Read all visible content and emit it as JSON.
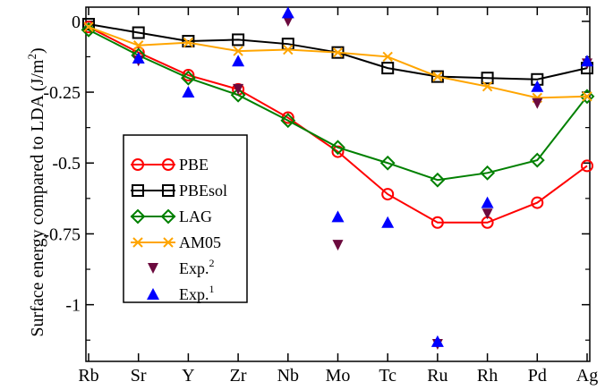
{
  "chart_data": {
    "type": "line",
    "title": "",
    "xlabel": "",
    "ylabel": "Surface energy compared to LDA (J/m",
    "ylabel_sup": "2",
    "ylabel_close": ")",
    "categories": [
      "Rb",
      "Sr",
      "Y",
      "Zr",
      "Nb",
      "Mo",
      "Tc",
      "Ru",
      "Rh",
      "Pd",
      "Ag"
    ],
    "ylim": [
      -1.2,
      0.05
    ],
    "yticks": [
      0,
      -0.25,
      -0.5,
      -0.75,
      -1
    ],
    "ytick_labels": [
      "0",
      "-0.25",
      "-0.5",
      "-0.75",
      "-1"
    ],
    "series": [
      {
        "name": "PBE",
        "color": "#ff0000",
        "marker": "circle",
        "line": true,
        "values": [
          -0.02,
          -0.11,
          -0.19,
          -0.24,
          -0.34,
          -0.46,
          -0.61,
          -0.71,
          -0.71,
          -0.64,
          -0.51
        ]
      },
      {
        "name": "PBEsol",
        "color": "#000000",
        "marker": "square",
        "line": true,
        "values": [
          -0.01,
          -0.04,
          -0.07,
          -0.065,
          -0.08,
          -0.11,
          -0.165,
          -0.195,
          -0.2,
          -0.205,
          -0.165
        ]
      },
      {
        "name": "LAG",
        "color": "#008000",
        "marker": "diamond",
        "line": true,
        "values": [
          -0.03,
          -0.12,
          -0.2,
          -0.26,
          -0.35,
          -0.445,
          -0.5,
          -0.56,
          -0.535,
          -0.49,
          -0.265
        ]
      },
      {
        "name": "AM05",
        "color": "#ffa500",
        "marker": "x",
        "line": true,
        "values": [
          -0.02,
          -0.085,
          -0.075,
          -0.105,
          -0.1,
          -0.11,
          -0.125,
          -0.195,
          -0.23,
          -0.27,
          -0.265
        ]
      },
      {
        "name": "Exp.",
        "sup": "2",
        "color": "#6b0a3e",
        "marker": "triangle-down",
        "line": false,
        "values": [
          null,
          -0.14,
          null,
          -0.24,
          0.0,
          -0.79,
          null,
          -1.14,
          -0.68,
          -0.29,
          -0.15
        ]
      },
      {
        "name": "Exp.",
        "sup": "1",
        "color": "#0000ff",
        "marker": "triangle-up",
        "line": false,
        "values": [
          null,
          -0.13,
          -0.25,
          -0.14,
          0.03,
          -0.69,
          -0.71,
          -1.13,
          -0.64,
          -0.23,
          -0.14
        ]
      }
    ],
    "legend_position": "left-center",
    "grid": false
  }
}
